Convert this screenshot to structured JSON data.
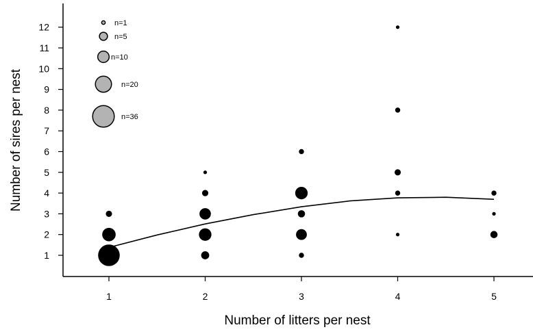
{
  "chart_data": {
    "type": "scatter",
    "title": "",
    "xlabel": "Number of litters per nest",
    "ylabel": "Number of sires per nest",
    "xlim": [
      0.5,
      5.4
    ],
    "ylim": [
      0,
      13
    ],
    "x_ticks": [
      1,
      2,
      3,
      4,
      5
    ],
    "y_ticks": [
      1,
      2,
      3,
      4,
      5,
      6,
      7,
      8,
      9,
      10,
      11,
      12
    ],
    "grid": false,
    "point_color": "#000000",
    "legend_color": "#b3b3b3",
    "legend_placement": "top-left",
    "size_legend": [
      {
        "n": 1,
        "label": "n=1"
      },
      {
        "n": 5,
        "label": "n=5"
      },
      {
        "n": 10,
        "label": "n=10"
      },
      {
        "n": 20,
        "label": "n=20"
      },
      {
        "n": 36,
        "label": "n=36"
      }
    ],
    "points": [
      {
        "x": 1,
        "y": 1,
        "n": 36
      },
      {
        "x": 1,
        "y": 2,
        "n": 14
      },
      {
        "x": 1,
        "y": 3,
        "n": 3
      },
      {
        "x": 2,
        "y": 1,
        "n": 5
      },
      {
        "x": 2,
        "y": 2,
        "n": 12
      },
      {
        "x": 2,
        "y": 3,
        "n": 10
      },
      {
        "x": 2,
        "y": 4,
        "n": 3
      },
      {
        "x": 2,
        "y": 5,
        "n": 1
      },
      {
        "x": 3,
        "y": 1,
        "n": 2
      },
      {
        "x": 3,
        "y": 2,
        "n": 9
      },
      {
        "x": 3,
        "y": 3,
        "n": 4
      },
      {
        "x": 3,
        "y": 4,
        "n": 12
      },
      {
        "x": 3,
        "y": 6,
        "n": 2
      },
      {
        "x": 4,
        "y": 2,
        "n": 1
      },
      {
        "x": 4,
        "y": 4,
        "n": 2
      },
      {
        "x": 4,
        "y": 5,
        "n": 3
      },
      {
        "x": 4,
        "y": 8,
        "n": 2
      },
      {
        "x": 4,
        "y": 12,
        "n": 1
      },
      {
        "x": 5,
        "y": 2,
        "n": 4
      },
      {
        "x": 5,
        "y": 3,
        "n": 1
      },
      {
        "x": 5,
        "y": 4,
        "n": 2
      }
    ],
    "fit_curve": {
      "type": "quadratic",
      "x_range": [
        1,
        5
      ],
      "points": [
        {
          "x": 1.0,
          "y": 1.38
        },
        {
          "x": 1.5,
          "y": 1.98
        },
        {
          "x": 2.0,
          "y": 2.51
        },
        {
          "x": 2.5,
          "y": 2.96
        },
        {
          "x": 3.0,
          "y": 3.34
        },
        {
          "x": 3.5,
          "y": 3.62
        },
        {
          "x": 4.0,
          "y": 3.77
        },
        {
          "x": 4.5,
          "y": 3.8
        },
        {
          "x": 5.0,
          "y": 3.7
        }
      ]
    }
  }
}
